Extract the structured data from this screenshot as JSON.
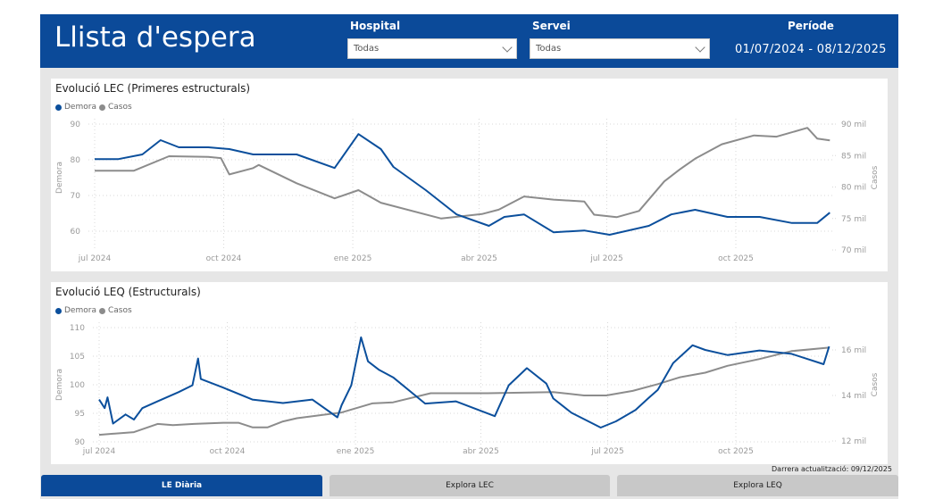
{
  "header": {
    "title": "Llista d'espera",
    "hospital_label": "Hospital",
    "hospital_value": "Todas",
    "servei_label": "Servei",
    "servei_value": "Todas",
    "periode_label": "Període",
    "periode_value": "01/07/2024 - 08/12/2025"
  },
  "colors": {
    "brand": "#0b4a99",
    "demora": "#0b4f9c",
    "casos": "#8c8c8c"
  },
  "footer": {
    "updated": "Darrera actualització: 09/12/2025"
  },
  "tabs": [
    {
      "label": "LE Diària",
      "active": true
    },
    {
      "label": "Explora LEC",
      "active": false
    },
    {
      "label": "Explora LEQ",
      "active": false
    }
  ],
  "chart_data": [
    {
      "type": "line",
      "title": "Evolució LEC (Primeres estructurals)",
      "legend": [
        "Demora",
        "Casos"
      ],
      "legend_position": "top-left",
      "ylabel": "Demora",
      "y2label": "Casos",
      "x_ticks": [
        {
          "date": "2024-07-01",
          "label": "jul 2024"
        },
        {
          "date": "2024-10-01",
          "label": "oct 2024"
        },
        {
          "date": "2025-01-01",
          "label": "ene 2025"
        },
        {
          "date": "2025-04-01",
          "label": "abr 2025"
        },
        {
          "date": "2025-07-01",
          "label": "jul 2025"
        },
        {
          "date": "2025-10-01",
          "label": "oct 2025"
        }
      ],
      "y_ticks": [
        {
          "v": 90,
          "label": "90"
        },
        {
          "v": 80,
          "label": "80"
        },
        {
          "v": 70,
          "label": "70"
        },
        {
          "v": 60,
          "label": "60"
        }
      ],
      "y2_ticks": [
        {
          "v": 90,
          "label": "90 mil"
        },
        {
          "v": 85,
          "label": "85 mil"
        },
        {
          "v": 80,
          "label": "80 mil"
        },
        {
          "v": 75,
          "label": "75 mil"
        },
        {
          "v": 70,
          "label": "70 mil"
        }
      ],
      "ylim": [
        55,
        90
      ],
      "y2lim": [
        70,
        90
      ],
      "grid": true,
      "series": [
        {
          "name": "Demora",
          "axis": "left",
          "points": [
            [
              "2024-07-01",
              80.2
            ],
            [
              "2024-07-18",
              80.2
            ],
            [
              "2024-08-04",
              81.5
            ],
            [
              "2024-08-17",
              85.5
            ],
            [
              "2024-08-30",
              83.5
            ],
            [
              "2024-09-20",
              83.5
            ],
            [
              "2024-10-05",
              83
            ],
            [
              "2024-10-22",
              81.5
            ],
            [
              "2024-11-22",
              81.5
            ],
            [
              "2024-12-19",
              77.7
            ],
            [
              "2025-01-05",
              87.2
            ],
            [
              "2025-01-21",
              83
            ],
            [
              "2025-01-30",
              78
            ],
            [
              "2025-02-22",
              71.5
            ],
            [
              "2025-03-16",
              64.7
            ],
            [
              "2025-04-08",
              61.5
            ],
            [
              "2025-04-19",
              64
            ],
            [
              "2025-05-03",
              64.7
            ],
            [
              "2025-05-24",
              59.7
            ],
            [
              "2025-06-15",
              60.2
            ],
            [
              "2025-07-03",
              59
            ],
            [
              "2025-07-31",
              61.5
            ],
            [
              "2025-08-16",
              64.7
            ],
            [
              "2025-09-02",
              66
            ],
            [
              "2025-09-25",
              64
            ],
            [
              "2025-10-18",
              64
            ],
            [
              "2025-11-10",
              62.3
            ],
            [
              "2025-11-28",
              62.3
            ],
            [
              "2025-12-07",
              65.2
            ]
          ]
        },
        {
          "name": "Casos",
          "axis": "right",
          "unit": "mil",
          "points": [
            [
              "2024-07-01",
              82.6
            ],
            [
              "2024-07-29",
              82.6
            ],
            [
              "2024-08-23",
              84.9
            ],
            [
              "2024-09-20",
              84.8
            ],
            [
              "2024-09-29",
              84.6
            ],
            [
              "2024-10-05",
              82
            ],
            [
              "2024-10-22",
              83
            ],
            [
              "2024-10-26",
              83.5
            ],
            [
              "2024-11-22",
              80.6
            ],
            [
              "2024-12-19",
              78.2
            ],
            [
              "2025-01-05",
              79.5
            ],
            [
              "2025-01-21",
              77.5
            ],
            [
              "2025-03-05",
              75
            ],
            [
              "2025-04-03",
              75.7
            ],
            [
              "2025-04-15",
              76.4
            ],
            [
              "2025-05-03",
              78.5
            ],
            [
              "2025-05-24",
              78
            ],
            [
              "2025-06-15",
              77.7
            ],
            [
              "2025-06-22",
              75.6
            ],
            [
              "2025-07-08",
              75.2
            ],
            [
              "2025-07-24",
              76.2
            ],
            [
              "2025-08-11",
              80.9
            ],
            [
              "2025-08-22",
              82.8
            ],
            [
              "2025-09-02",
              84.5
            ],
            [
              "2025-09-21",
              86.8
            ],
            [
              "2025-10-14",
              88.2
            ],
            [
              "2025-10-30",
              88
            ],
            [
              "2025-11-21",
              89.4
            ],
            [
              "2025-11-28",
              87.7
            ],
            [
              "2025-12-07",
              87.4
            ]
          ]
        }
      ]
    },
    {
      "type": "line",
      "title": "Evolució LEQ (Estructurals)",
      "legend": [
        "Demora",
        "Casos"
      ],
      "legend_position": "top-left",
      "ylabel": "Demora",
      "y2label": "Casos",
      "x_ticks": [
        {
          "date": "2024-07-01",
          "label": "jul 2024"
        },
        {
          "date": "2024-10-01",
          "label": "oct 2024"
        },
        {
          "date": "2025-01-01",
          "label": "ene 2025"
        },
        {
          "date": "2025-04-01",
          "label": "abr 2025"
        },
        {
          "date": "2025-07-01",
          "label": "jul 2025"
        },
        {
          "date": "2025-10-01",
          "label": "oct 2025"
        }
      ],
      "y_ticks": [
        {
          "v": 110,
          "label": "110"
        },
        {
          "v": 105,
          "label": "105"
        },
        {
          "v": 100,
          "label": "100"
        },
        {
          "v": 95,
          "label": "95"
        },
        {
          "v": 90,
          "label": "90"
        }
      ],
      "y2_ticks": [
        {
          "v": 16,
          "label": "16 mil"
        },
        {
          "v": 14,
          "label": "14 mil"
        },
        {
          "v": 12,
          "label": "12 mil"
        }
      ],
      "ylim": [
        90,
        110
      ],
      "y2lim": [
        12,
        16
      ],
      "grid": true,
      "series": [
        {
          "name": "Demora",
          "axis": "left",
          "points": [
            [
              "2024-07-01",
              97.4
            ],
            [
              "2024-07-05",
              95.9
            ],
            [
              "2024-07-07",
              97.8
            ],
            [
              "2024-07-11",
              93.2
            ],
            [
              "2024-07-20",
              94.8
            ],
            [
              "2024-07-26",
              93.9
            ],
            [
              "2024-08-01",
              95.9
            ],
            [
              "2024-08-12",
              97.1
            ],
            [
              "2024-08-27",
              98.7
            ],
            [
              "2024-09-06",
              99.9
            ],
            [
              "2024-09-10",
              104.6
            ],
            [
              "2024-09-12",
              101
            ],
            [
              "2024-09-28",
              99.5
            ],
            [
              "2024-10-19",
              97.4
            ],
            [
              "2024-11-10",
              96.8
            ],
            [
              "2024-12-01",
              97.4
            ],
            [
              "2024-12-19",
              94.3
            ],
            [
              "2024-12-22",
              96.4
            ],
            [
              "2024-12-29",
              99.9
            ],
            [
              "2025-01-05",
              108.3
            ],
            [
              "2025-01-10",
              104.1
            ],
            [
              "2025-01-18",
              102.6
            ],
            [
              "2025-01-28",
              101.3
            ],
            [
              "2025-02-20",
              96.7
            ],
            [
              "2025-03-14",
              97.1
            ],
            [
              "2025-04-11",
              94.5
            ],
            [
              "2025-04-21",
              99.9
            ],
            [
              "2025-05-04",
              102.9
            ],
            [
              "2025-05-18",
              100.2
            ],
            [
              "2025-05-23",
              97.6
            ],
            [
              "2025-06-05",
              95.1
            ],
            [
              "2025-06-26",
              92.5
            ],
            [
              "2025-07-07",
              93.6
            ],
            [
              "2025-07-21",
              95.6
            ],
            [
              "2025-07-30",
              97.6
            ],
            [
              "2025-08-06",
              99.1
            ],
            [
              "2025-08-17",
              103.8
            ],
            [
              "2025-08-31",
              106.9
            ],
            [
              "2025-09-09",
              106.1
            ],
            [
              "2025-09-25",
              105.2
            ],
            [
              "2025-10-18",
              106
            ],
            [
              "2025-11-10",
              105.4
            ],
            [
              "2025-12-03",
              103.6
            ],
            [
              "2025-12-07",
              106.7
            ]
          ]
        },
        {
          "name": "Casos",
          "axis": "right",
          "unit": "mil",
          "points": [
            [
              "2024-07-01",
              12.27
            ],
            [
              "2024-07-26",
              12.39
            ],
            [
              "2024-08-12",
              12.75
            ],
            [
              "2024-08-23",
              12.7
            ],
            [
              "2024-09-07",
              12.75
            ],
            [
              "2024-09-28",
              12.8
            ],
            [
              "2024-10-09",
              12.8
            ],
            [
              "2024-10-19",
              12.6
            ],
            [
              "2024-10-30",
              12.6
            ],
            [
              "2024-11-10",
              12.86
            ],
            [
              "2024-11-20",
              13.0
            ],
            [
              "2024-12-22",
              13.25
            ],
            [
              "2025-01-13",
              13.65
            ],
            [
              "2025-01-28",
              13.7
            ],
            [
              "2025-02-24",
              14.1
            ],
            [
              "2025-04-06",
              14.1
            ],
            [
              "2025-05-23",
              14.15
            ],
            [
              "2025-06-14",
              14.0
            ],
            [
              "2025-06-30",
              14.0
            ],
            [
              "2025-07-19",
              14.2
            ],
            [
              "2025-08-06",
              14.5
            ],
            [
              "2025-08-22",
              14.8
            ],
            [
              "2025-09-09",
              15.0
            ],
            [
              "2025-09-25",
              15.3
            ],
            [
              "2025-10-18",
              15.6
            ],
            [
              "2025-11-10",
              15.95
            ],
            [
              "2025-12-07",
              16.1
            ]
          ]
        }
      ]
    }
  ]
}
